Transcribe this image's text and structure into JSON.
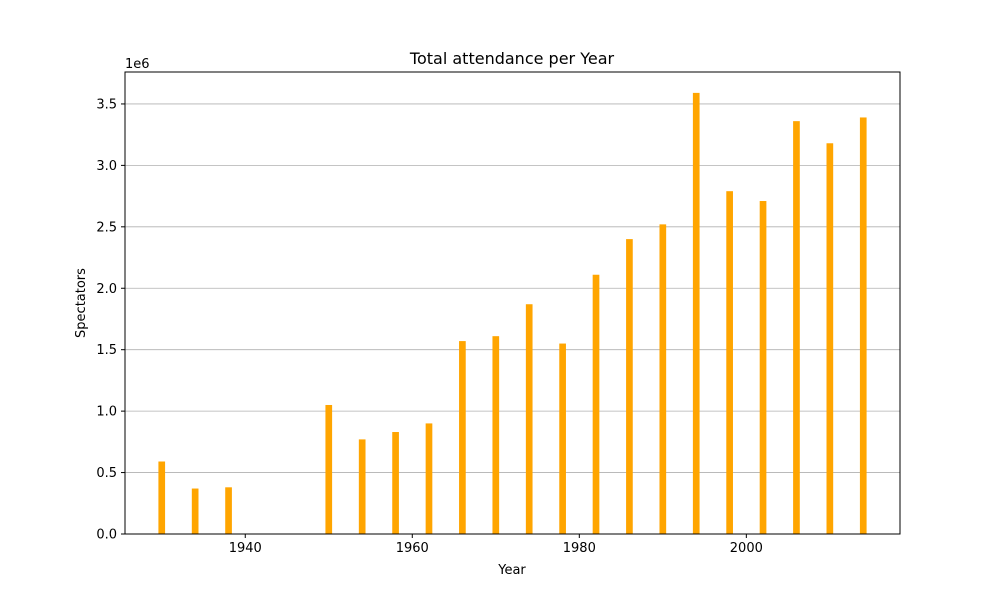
{
  "chart_data": {
    "type": "bar",
    "title": "Total attendance per Year",
    "xlabel": "Year",
    "ylabel": "Spectators",
    "y_offset_label": "1e6",
    "y_scale_factor": 1000000,
    "grid": "y-major",
    "bar_color": "#ffa500",
    "xlim": [
      1925.6,
      2018.4
    ],
    "ylim": [
      0,
      3.76
    ],
    "xticks": [
      1940,
      1960,
      1980,
      2000
    ],
    "yticks": [
      0.0,
      0.5,
      1.0,
      1.5,
      2.0,
      2.5,
      3.0,
      3.5
    ],
    "ytick_labels": [
      "0.0",
      "0.5",
      "1.0",
      "1.5",
      "2.0",
      "2.5",
      "3.0",
      "3.5"
    ],
    "x": [
      1930,
      1934,
      1938,
      1950,
      1954,
      1958,
      1962,
      1966,
      1970,
      1974,
      1978,
      1982,
      1986,
      1990,
      1994,
      1998,
      2002,
      2006,
      2010,
      2014
    ],
    "values": [
      0.59,
      0.37,
      0.38,
      1.05,
      0.77,
      0.83,
      0.9,
      1.57,
      1.61,
      1.87,
      1.55,
      2.11,
      2.4,
      2.52,
      3.59,
      2.79,
      2.71,
      3.36,
      3.18,
      3.39
    ]
  }
}
